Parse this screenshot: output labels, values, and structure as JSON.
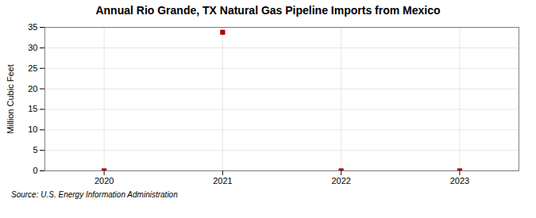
{
  "chart_data": {
    "type": "scatter",
    "title": "Annual Rio Grande, TX Natural Gas Pipeline Imports from Mexico",
    "ylabel": "Million Cubic Feet",
    "source": "Source: U.S. Energy Information Administration",
    "x": [
      2020,
      2021,
      2022,
      2023
    ],
    "values": [
      0,
      33.8,
      0,
      0
    ],
    "color": "#aa0000",
    "marker": "square",
    "xlim": [
      2019.5,
      2023.5
    ],
    "ylim": [
      0,
      35
    ],
    "xticks": [
      2020,
      2021,
      2022,
      2023
    ],
    "yticks": [
      0,
      5,
      10,
      15,
      20,
      25,
      30,
      35
    ],
    "grid": true
  }
}
